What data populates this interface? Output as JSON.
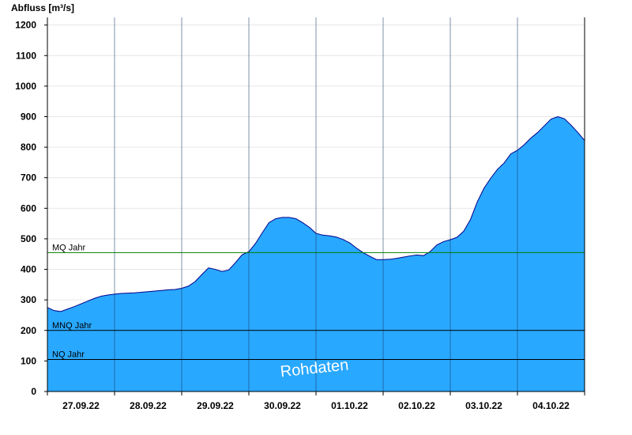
{
  "chart_data": {
    "type": "area",
    "ylabel": "Abfluss [m³/s]",
    "xlabel": "",
    "ylim": [
      0,
      1225
    ],
    "y_ticks": [
      0,
      100,
      200,
      300,
      400,
      500,
      600,
      700,
      800,
      900,
      1000,
      1100,
      1200
    ],
    "x_range_days": [
      0,
      8
    ],
    "date_labels": [
      "27.09.22",
      "28.09.22",
      "29.09.22",
      "30.09.22",
      "01.10.22",
      "02.10.22",
      "03.10.22",
      "04.10.22"
    ],
    "reference_lines": [
      {
        "label": "MQ Jahr",
        "value": 455,
        "color": "#008000"
      },
      {
        "label": "MNQ Jahr",
        "value": 200,
        "color": "#000000"
      },
      {
        "label": "NQ Jahr",
        "value": 105,
        "color": "#000000"
      }
    ],
    "watermark": "Rohdaten",
    "fill_color": "#29a8ff",
    "line_color": "#00008b",
    "series": [
      {
        "points": [
          [
            0.0,
            275
          ],
          [
            0.1,
            265
          ],
          [
            0.2,
            262
          ],
          [
            0.3,
            270
          ],
          [
            0.4,
            278
          ],
          [
            0.5,
            287
          ],
          [
            0.6,
            296
          ],
          [
            0.7,
            305
          ],
          [
            0.8,
            312
          ],
          [
            0.9,
            316
          ],
          [
            1.0,
            319
          ],
          [
            1.1,
            321
          ],
          [
            1.2,
            322
          ],
          [
            1.3,
            323
          ],
          [
            1.4,
            325
          ],
          [
            1.5,
            327
          ],
          [
            1.6,
            329
          ],
          [
            1.7,
            331
          ],
          [
            1.8,
            333
          ],
          [
            1.9,
            334
          ],
          [
            2.0,
            338
          ],
          [
            2.1,
            345
          ],
          [
            2.2,
            360
          ],
          [
            2.3,
            383
          ],
          [
            2.4,
            405
          ],
          [
            2.5,
            400
          ],
          [
            2.6,
            393
          ],
          [
            2.7,
            398
          ],
          [
            2.8,
            422
          ],
          [
            2.9,
            448
          ],
          [
            3.0,
            458
          ],
          [
            3.1,
            485
          ],
          [
            3.2,
            520
          ],
          [
            3.3,
            553
          ],
          [
            3.4,
            566
          ],
          [
            3.5,
            570
          ],
          [
            3.6,
            570
          ],
          [
            3.7,
            566
          ],
          [
            3.8,
            553
          ],
          [
            3.9,
            538
          ],
          [
            4.0,
            518
          ],
          [
            4.1,
            512
          ],
          [
            4.2,
            510
          ],
          [
            4.3,
            506
          ],
          [
            4.4,
            498
          ],
          [
            4.5,
            487
          ],
          [
            4.6,
            470
          ],
          [
            4.7,
            455
          ],
          [
            4.8,
            443
          ],
          [
            4.9,
            432
          ],
          [
            5.0,
            432
          ],
          [
            5.1,
            433
          ],
          [
            5.2,
            436
          ],
          [
            5.3,
            440
          ],
          [
            5.4,
            444
          ],
          [
            5.5,
            447
          ],
          [
            5.6,
            445
          ],
          [
            5.7,
            458
          ],
          [
            5.8,
            480
          ],
          [
            5.9,
            491
          ],
          [
            6.0,
            497
          ],
          [
            6.1,
            505
          ],
          [
            6.2,
            525
          ],
          [
            6.3,
            563
          ],
          [
            6.4,
            620
          ],
          [
            6.5,
            665
          ],
          [
            6.6,
            698
          ],
          [
            6.7,
            727
          ],
          [
            6.8,
            748
          ],
          [
            6.9,
            778
          ],
          [
            7.0,
            790
          ],
          [
            7.1,
            808
          ],
          [
            7.2,
            830
          ],
          [
            7.3,
            848
          ],
          [
            7.4,
            870
          ],
          [
            7.5,
            892
          ],
          [
            7.6,
            900
          ],
          [
            7.7,
            893
          ],
          [
            7.8,
            872
          ],
          [
            7.9,
            848
          ],
          [
            8.0,
            822
          ]
        ]
      }
    ]
  }
}
